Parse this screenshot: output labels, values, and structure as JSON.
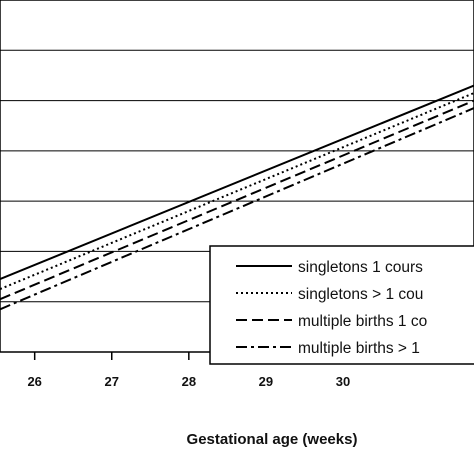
{
  "chart_data": {
    "type": "line",
    "title": "",
    "xlabel": "Gestational age (weeks)",
    "ylabel": "",
    "xlim": [
      25.55,
      31.7
    ],
    "ylim": [
      0,
      7
    ],
    "x_ticks": [
      26,
      27,
      28,
      29,
      30
    ],
    "grid": "horizontal",
    "legend_position": "lower-right",
    "series": [
      {
        "name": "singletons 1 cours",
        "style": "solid",
        "x": [
          25.55,
          31.7
        ],
        "y": [
          1.45,
          5.3
        ]
      },
      {
        "name": "singletons > 1 cou",
        "style": "dotted",
        "x": [
          25.55,
          31.7
        ],
        "y": [
          1.25,
          5.15
        ]
      },
      {
        "name": "multiple births 1 co",
        "style": "dashed",
        "x": [
          25.55,
          31.7
        ],
        "y": [
          1.05,
          5.0
        ]
      },
      {
        "name": "multiple births > 1",
        "style": "dash-dot",
        "x": [
          25.55,
          31.7
        ],
        "y": [
          0.85,
          4.85
        ]
      }
    ]
  }
}
